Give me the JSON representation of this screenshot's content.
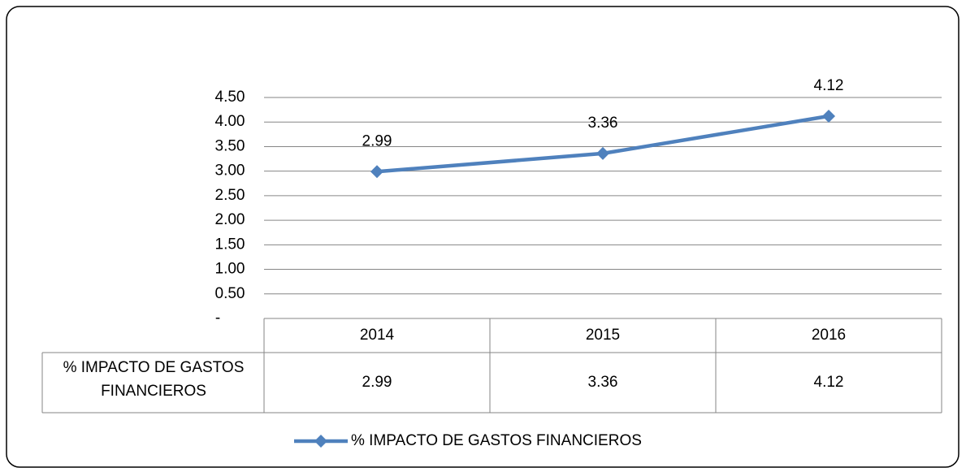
{
  "chart_data": {
    "type": "line",
    "categories": [
      "2014",
      "2015",
      "2016"
    ],
    "series": [
      {
        "name": "% IMPACTO DE GASTOS FINANCIEROS",
        "color": "#4f81bd",
        "values": [
          2.99,
          3.36,
          4.12
        ]
      }
    ],
    "ylim": [
      0,
      4.5
    ],
    "yticks": [
      {
        "value": 0,
        "label": "-"
      },
      {
        "value": 0.5,
        "label": "0.50"
      },
      {
        "value": 1,
        "label": "1.00"
      },
      {
        "value": 1.5,
        "label": "1.50"
      },
      {
        "value": 2,
        "label": "2.00"
      },
      {
        "value": 2.5,
        "label": "2.50"
      },
      {
        "value": 3,
        "label": "3.00"
      },
      {
        "value": 3.5,
        "label": "3.50"
      },
      {
        "value": 4,
        "label": "4.00"
      },
      {
        "value": 4.5,
        "label": "4.50"
      }
    ],
    "grid": true,
    "legend": "bottom",
    "data_table": true
  }
}
